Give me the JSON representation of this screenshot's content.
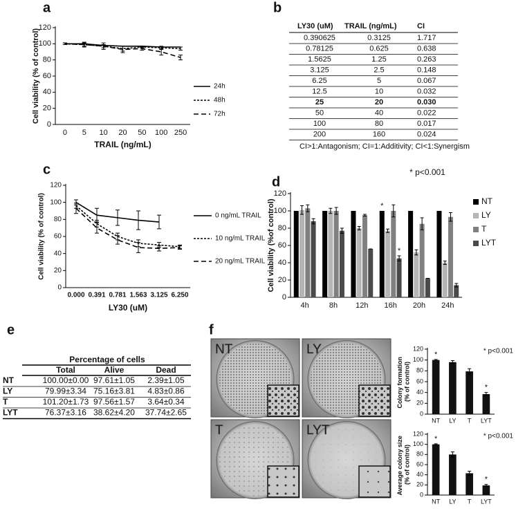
{
  "panel_labels": [
    "a",
    "b",
    "c",
    "d",
    "e",
    "f"
  ],
  "chart_data": [
    {
      "type": "line",
      "y_label": "Cell viability (% of control)",
      "x_label": "TRAIL (ng/mL)",
      "categories": [
        "0",
        "5",
        "10",
        "20",
        "50",
        "100",
        "250"
      ],
      "ylim": [
        0,
        120
      ],
      "yticks": [
        0,
        20,
        40,
        60,
        80,
        100,
        120
      ],
      "legend": "right",
      "series": [
        {
          "name": "24h",
          "color": "#000000",
          "line_style": "solid",
          "values": [
            100,
            100,
            98,
            97,
            97,
            96,
            96
          ]
        },
        {
          "name": "48h",
          "color": "#000000",
          "line_style": "dotted",
          "values": [
            100,
            99,
            97,
            94,
            96,
            95,
            94
          ],
          "errors": [
            1,
            2,
            2,
            3,
            1,
            2,
            2
          ]
        },
        {
          "name": "72h",
          "color": "#000000",
          "line_style": "dashed",
          "values": [
            100,
            99,
            97,
            93,
            94,
            90,
            83
          ],
          "errors": [
            1,
            3,
            4,
            4,
            2,
            4,
            3
          ]
        }
      ]
    },
    {
      "type": "line",
      "y_label": "Cell viability (% of control)",
      "x_label": "LY30 (uM)",
      "categories": [
        "0.000",
        "0.391",
        "0.781",
        "1.563",
        "3.125",
        "6.250"
      ],
      "ylim": [
        0,
        120
      ],
      "yticks": [
        0,
        20,
        40,
        60,
        80,
        100,
        120
      ],
      "legend": "right",
      "series": [
        {
          "name": "0 ng/mL TRAIL",
          "color": "#000000",
          "line_style": "solid",
          "values": [
            100,
            85,
            82,
            79,
            77,
            null
          ],
          "errors": [
            3,
            8,
            9,
            11,
            8,
            null
          ]
        },
        {
          "name": "10 ng/mL TRAIL",
          "color": "#000000",
          "line_style": "dotted",
          "values": [
            96,
            75,
            60,
            52,
            50,
            48
          ],
          "errors": [
            3,
            4,
            4,
            4,
            3,
            2
          ]
        },
        {
          "name": "20 ng/mL TRAIL",
          "color": "#000000",
          "line_style": "dashed",
          "values": [
            93,
            70,
            56,
            47,
            46,
            47
          ],
          "errors": [
            6,
            6,
            5,
            6,
            3,
            2
          ]
        }
      ]
    },
    {
      "type": "bar",
      "y_label": "Cell viability (%of control)",
      "note": "* p<0.001",
      "categories": [
        "4h",
        "8h",
        "12h",
        "16h",
        "20h",
        "24h"
      ],
      "ylim": [
        0,
        120
      ],
      "yticks": [
        0,
        20,
        40,
        60,
        80,
        100,
        120
      ],
      "legend": "right",
      "series": [
        {
          "name": "NT",
          "color": "#000000",
          "values": [
            100,
            100,
            100,
            100,
            100,
            100
          ]
        },
        {
          "name": "LY",
          "color": "#b5b5b5",
          "values": [
            101,
            100,
            80,
            77,
            52,
            40
          ],
          "errors": [
            5,
            3,
            2,
            2,
            3,
            2
          ]
        },
        {
          "name": "T",
          "color": "#808080",
          "values": [
            103,
            100,
            95,
            100,
            85,
            93
          ],
          "errors": [
            4,
            4,
            1,
            7,
            7,
            5
          ]
        },
        {
          "name": "LYT",
          "color": "#4a4a4a",
          "values": [
            88,
            77,
            56,
            45,
            22,
            14
          ],
          "errors": [
            3,
            3,
            0,
            3,
            0,
            2
          ]
        }
      ],
      "annotations": [
        {
          "text": "*",
          "category": "16h",
          "series": "NT"
        },
        {
          "text": "*",
          "category": "16h",
          "series": "LYT"
        }
      ]
    },
    {
      "type": "bar",
      "y_label": "Colony formation (% of control)",
      "note": "* p<0.001",
      "categories": [
        "NT",
        "LY",
        "T",
        "LYT"
      ],
      "ylim": [
        0,
        120
      ],
      "yticks": [
        0,
        20,
        40,
        60,
        80,
        100,
        120
      ],
      "series": [
        {
          "color": "#111111",
          "values": [
            100,
            96,
            79,
            37
          ],
          "errors": [
            1,
            3,
            5,
            3
          ]
        }
      ],
      "annotations": [
        {
          "text": "*",
          "category": "NT"
        },
        {
          "text": "*",
          "category": "LYT"
        }
      ]
    },
    {
      "type": "bar",
      "y_label": "Average colony size (% of control)",
      "note": "* p<0.001",
      "categories": [
        "NT",
        "LY",
        "T",
        "LYT"
      ],
      "ylim": [
        0,
        120
      ],
      "yticks": [
        0,
        20,
        40,
        60,
        80,
        100,
        120
      ],
      "series": [
        {
          "color": "#111111",
          "values": [
            100,
            80,
            43,
            19
          ],
          "errors": [
            1,
            5,
            4,
            2
          ]
        }
      ],
      "annotations": [
        {
          "text": "*",
          "category": "NT"
        },
        {
          "text": "*",
          "category": "LYT"
        }
      ]
    }
  ],
  "tables": {
    "b": {
      "columns": [
        "LY30 (uM)",
        "TRAIL (ng/mL)",
        "CI"
      ],
      "rows": [
        [
          "0.390625",
          "0.3125",
          "1.717"
        ],
        [
          "0.78125",
          "0.625",
          "0.638"
        ],
        [
          "1.5625",
          "1.25",
          "0.263"
        ],
        [
          "3.125",
          "2.5",
          "0.148"
        ],
        [
          "6.25",
          "5",
          "0.067"
        ],
        [
          "12.5",
          "10",
          "0.032"
        ],
        [
          "25",
          "20",
          "0.030"
        ],
        [
          "50",
          "40",
          "0.022"
        ],
        [
          "100",
          "80",
          "0.017"
        ],
        [
          "200",
          "160",
          "0.024"
        ]
      ],
      "bold_row": 6,
      "footnote": "CI>1:Antagonism; CI=1:Additivity; CI<1:Synergism"
    },
    "e": {
      "title": "Percentage of cells",
      "columns": [
        "Total",
        "Alive",
        "Dead"
      ],
      "rows": [
        [
          "NT",
          "100.00±0.00",
          "97.61±1.05",
          "2.39±1.05"
        ],
        [
          "LY",
          "79.99±3.34",
          "75.16±3.81",
          "4.83±0.86"
        ],
        [
          "T",
          "101.20±1.73",
          "97.56±1.57",
          "3.64±0.34"
        ],
        [
          "LYT",
          "76.37±3.16",
          "38.62±4.20",
          "37.74±2.65"
        ]
      ]
    }
  },
  "photos": {
    "labels": [
      "NT",
      "LY",
      "T",
      "LYT"
    ]
  }
}
